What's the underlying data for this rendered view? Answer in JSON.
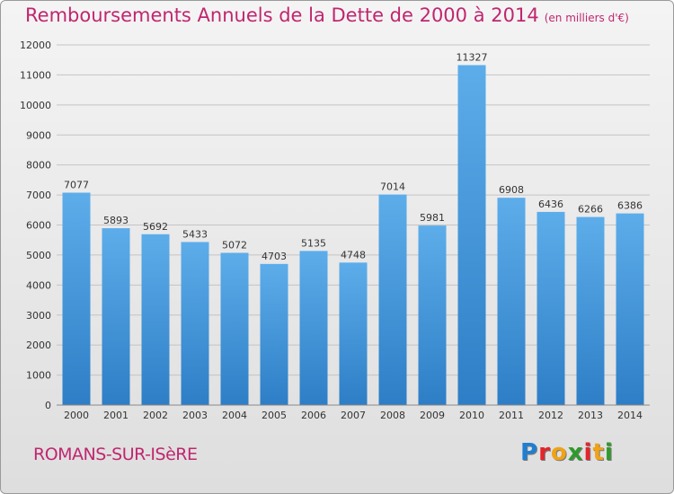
{
  "title": "Remboursements Annuels de la Dette de 2000 à 2014",
  "subtitle": "(en milliers d'€)",
  "location": "ROMANS-SUR-ISèRE",
  "logo": {
    "letters": [
      "P",
      "r",
      "o",
      "x",
      "i",
      "t",
      "i"
    ],
    "colors": [
      "#1f7fd2",
      "#e3262a",
      "#f0a316",
      "#2f9a2c",
      "#e3262a",
      "#f0a316",
      "#2f9a2c"
    ]
  },
  "colors": {
    "bar_top": "#5dadea",
    "bar_bottom": "#2d7ec6",
    "title": "#c0266f",
    "grid": "#c4c4c4"
  },
  "chart_data": {
    "type": "bar",
    "title": "Remboursements Annuels de la Dette de 2000 à 2014",
    "subtitle": "(en milliers d'€)",
    "categories": [
      "2000",
      "2001",
      "2002",
      "2003",
      "2004",
      "2005",
      "2006",
      "2007",
      "2008",
      "2009",
      "2010",
      "2011",
      "2012",
      "2013",
      "2014"
    ],
    "values": [
      7077,
      5893,
      5692,
      5433,
      5072,
      4703,
      5135,
      4748,
      7014,
      5981,
      11327,
      6908,
      6436,
      6266,
      6386
    ],
    "yticks": [
      0,
      1000,
      2000,
      3000,
      4000,
      5000,
      6000,
      7000,
      8000,
      9000,
      10000,
      11000,
      12000
    ],
    "ylim": [
      0,
      12000
    ],
    "grid": true,
    "data_labels": true,
    "xlabel": "",
    "ylabel": ""
  }
}
